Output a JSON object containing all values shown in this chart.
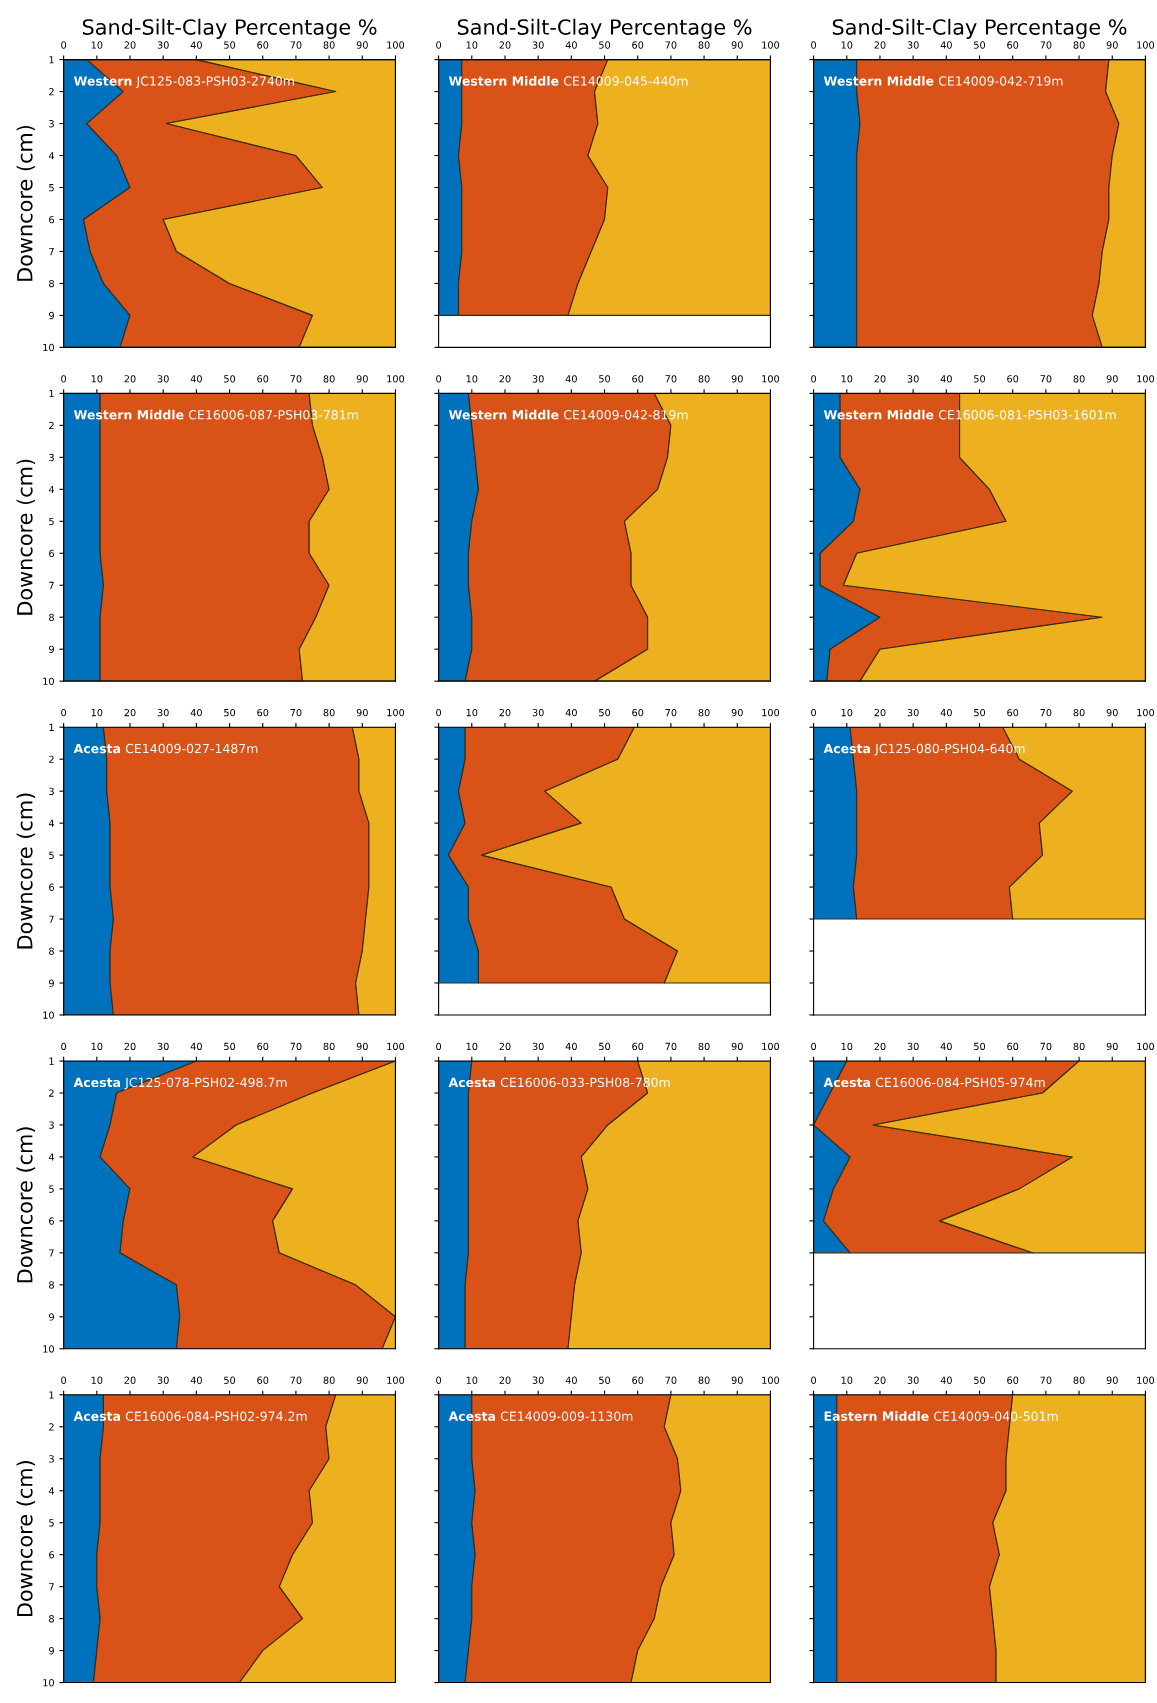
{
  "chart_data": [
    {
      "type": "area",
      "orientation": "horizontal",
      "stacked": true,
      "title": "Sand-Silt-Clay Percentage %",
      "ylabel": "Downcore (cm)",
      "x": [
        1,
        2,
        3,
        4,
        5,
        6,
        7,
        8,
        9,
        10
      ],
      "ylim": [
        10,
        1
      ],
      "yticks": [
        1,
        2,
        3,
        4,
        5,
        6,
        7,
        8,
        9,
        10
      ],
      "xlim": [
        0,
        100
      ],
      "xticks": [
        0,
        10,
        20,
        30,
        40,
        50,
        60,
        70,
        80,
        90,
        100
      ],
      "annotations": [
        "Western",
        "JC125-083-PSH03-2740m"
      ],
      "series": [
        {
          "color": "#0072bd",
          "values": [
            7,
            18,
            7,
            16,
            20,
            6,
            8,
            12,
            20,
            17
          ]
        },
        {
          "color": "#d95319",
          "values": [
            33,
            64,
            24,
            54,
            58,
            24,
            26,
            38,
            55,
            54
          ]
        },
        {
          "color": "#edb120",
          "values": [
            60,
            18,
            69,
            30,
            22,
            70,
            66,
            50,
            25,
            29
          ]
        }
      ]
    },
    {
      "type": "area",
      "orientation": "horizontal",
      "stacked": true,
      "title": "Sand-Silt-Clay Percentage %",
      "x": [
        1,
        2,
        3,
        4,
        5,
        6,
        7,
        8,
        9
      ],
      "ylim": [
        10,
        1
      ],
      "yticks": [
        1,
        2,
        3,
        4,
        5,
        6,
        7,
        8,
        9,
        10
      ],
      "tick_labels": "x",
      "xlim": [
        0,
        100
      ],
      "xticks": [
        0,
        10,
        20,
        30,
        40,
        50,
        60,
        70,
        80,
        90,
        100
      ],
      "annotations": [
        "Western Middle",
        "CE14009-045-440m"
      ],
      "series": [
        {
          "color": "#0072bd",
          "values": [
            7,
            7,
            7,
            6,
            7,
            7,
            7,
            6,
            6
          ]
        },
        {
          "color": "#d95319",
          "values": [
            44,
            40,
            41,
            39,
            44,
            43,
            39,
            36,
            33
          ]
        },
        {
          "color": "#edb120",
          "values": [
            49,
            53,
            52,
            55,
            49,
            50,
            54,
            58,
            61
          ]
        }
      ]
    },
    {
      "type": "area",
      "orientation": "horizontal",
      "stacked": true,
      "title": "Sand-Silt-Clay Percentage %",
      "x": [
        1,
        2,
        3,
        4,
        5,
        6,
        7,
        8,
        9,
        10
      ],
      "ylim": [
        10,
        1
      ],
      "yticks": [
        1,
        2,
        3,
        4,
        5,
        6,
        7,
        8,
        9,
        10
      ],
      "tick_labels": "x",
      "xlim": [
        0,
        100
      ],
      "xticks": [
        0,
        10,
        20,
        30,
        40,
        50,
        60,
        70,
        80,
        90,
        100
      ],
      "annotations": [
        "Western Middle",
        "CE14009-042-719m"
      ],
      "series": [
        {
          "color": "#0072bd",
          "values": [
            13,
            13,
            14,
            13,
            13,
            13,
            13,
            13,
            13,
            13
          ]
        },
        {
          "color": "#d95319",
          "values": [
            76,
            75,
            78,
            77,
            76,
            76,
            74,
            73,
            71,
            74
          ]
        },
        {
          "color": "#edb120",
          "values": [
            11,
            12,
            8,
            10,
            11,
            11,
            13,
            14,
            16,
            13
          ]
        }
      ]
    },
    {
      "type": "area",
      "orientation": "horizontal",
      "stacked": true,
      "ylabel": "Downcore (cm)",
      "x": [
        1,
        2,
        3,
        4,
        5,
        6,
        7,
        8,
        9,
        10
      ],
      "ylim": [
        10,
        1
      ],
      "yticks": [
        1,
        2,
        3,
        4,
        5,
        6,
        7,
        8,
        9,
        10
      ],
      "xlim": [
        0,
        100
      ],
      "xticks": [
        0,
        10,
        20,
        30,
        40,
        50,
        60,
        70,
        80,
        90,
        100
      ],
      "annotations": [
        "Western Middle",
        "CE16006-087-PSH03-781m"
      ],
      "series": [
        {
          "color": "#0072bd",
          "values": [
            11,
            11,
            11,
            11,
            11,
            11,
            12,
            11,
            11,
            11
          ]
        },
        {
          "color": "#d95319",
          "values": [
            63,
            64,
            67,
            69,
            63,
            63,
            68,
            65,
            60,
            61
          ]
        },
        {
          "color": "#edb120",
          "values": [
            26,
            25,
            22,
            20,
            26,
            26,
            20,
            24,
            29,
            28
          ]
        }
      ]
    },
    {
      "type": "area",
      "orientation": "horizontal",
      "stacked": true,
      "x": [
        1,
        2,
        3,
        4,
        5,
        6,
        7,
        8,
        9,
        10
      ],
      "ylim": [
        10,
        1
      ],
      "yticks": [
        1,
        2,
        3,
        4,
        5,
        6,
        7,
        8,
        9,
        10
      ],
      "tick_labels": "x",
      "xlim": [
        0,
        100
      ],
      "xticks": [
        0,
        10,
        20,
        30,
        40,
        50,
        60,
        70,
        80,
        90,
        100
      ],
      "annotations": [
        "Western Middle",
        "CE14009-042-819m"
      ],
      "series": [
        {
          "color": "#0072bd",
          "values": [
            9,
            10,
            11,
            12,
            10,
            9,
            9,
            10,
            10,
            8
          ]
        },
        {
          "color": "#d95319",
          "values": [
            56,
            60,
            58,
            54,
            46,
            49,
            49,
            53,
            53,
            39
          ]
        },
        {
          "color": "#edb120",
          "values": [
            35,
            30,
            31,
            34,
            44,
            42,
            42,
            37,
            37,
            53
          ]
        }
      ]
    },
    {
      "type": "area",
      "orientation": "horizontal",
      "stacked": true,
      "x": [
        1,
        2,
        3,
        4,
        5,
        6,
        7,
        8,
        9,
        10
      ],
      "ylim": [
        10,
        1
      ],
      "yticks": [
        1,
        2,
        3,
        4,
        5,
        6,
        7,
        8,
        9,
        10
      ],
      "tick_labels": "x",
      "xlim": [
        0,
        100
      ],
      "xticks": [
        0,
        10,
        20,
        30,
        40,
        50,
        60,
        70,
        80,
        90,
        100
      ],
      "annotations": [
        "Western Middle",
        "CE16006-081-PSH03-1601m"
      ],
      "series": [
        {
          "color": "#0072bd",
          "values": [
            8,
            8,
            8,
            14,
            12,
            2,
            2,
            20,
            5,
            4
          ]
        },
        {
          "color": "#d95319",
          "values": [
            36,
            36,
            36,
            39,
            46,
            11,
            7,
            67,
            15,
            10
          ]
        },
        {
          "color": "#edb120",
          "values": [
            56,
            56,
            56,
            47,
            42,
            87,
            91,
            13,
            80,
            86
          ]
        }
      ]
    },
    {
      "type": "area",
      "orientation": "horizontal",
      "stacked": true,
      "ylabel": "Downcore (cm)",
      "x": [
        1,
        2,
        3,
        4,
        5,
        6,
        7,
        8,
        9,
        10
      ],
      "ylim": [
        10,
        1
      ],
      "yticks": [
        1,
        2,
        3,
        4,
        5,
        6,
        7,
        8,
        9,
        10
      ],
      "xlim": [
        0,
        100
      ],
      "xticks": [
        0,
        10,
        20,
        30,
        40,
        50,
        60,
        70,
        80,
        90,
        100
      ],
      "annotations": [
        "Acesta",
        "CE14009-027-1487m"
      ],
      "series": [
        {
          "color": "#0072bd",
          "values": [
            12,
            13,
            13,
            14,
            14,
            14,
            15,
            14,
            14,
            15
          ]
        },
        {
          "color": "#d95319",
          "values": [
            75,
            76,
            76,
            78,
            78,
            78,
            76,
            76,
            74,
            74
          ]
        },
        {
          "color": "#edb120",
          "values": [
            13,
            11,
            11,
            8,
            8,
            8,
            9,
            10,
            12,
            11
          ]
        }
      ]
    },
    {
      "type": "area",
      "orientation": "horizontal",
      "stacked": true,
      "x": [
        1,
        2,
        3,
        4,
        5,
        6,
        7,
        8,
        9
      ],
      "ylim": [
        10,
        1
      ],
      "yticks": [
        1,
        2,
        3,
        4,
        5,
        6,
        7,
        8,
        9,
        10
      ],
      "tick_labels": "x",
      "xlim": [
        0,
        100
      ],
      "xticks": [
        0,
        10,
        20,
        30,
        40,
        50,
        60,
        70,
        80,
        90,
        100
      ],
      "series": [
        {
          "color": "#0072bd",
          "values": [
            8,
            8,
            6,
            8,
            3,
            9,
            9,
            12,
            12
          ]
        },
        {
          "color": "#d95319",
          "values": [
            51,
            46,
            26,
            35,
            10,
            43,
            47,
            60,
            56
          ]
        },
        {
          "color": "#edb120",
          "values": [
            41,
            46,
            68,
            57,
            87,
            48,
            44,
            28,
            32
          ]
        }
      ]
    },
    {
      "type": "area",
      "orientation": "horizontal",
      "stacked": true,
      "x": [
        1,
        2,
        3,
        4,
        5,
        6,
        7
      ],
      "ylim": [
        10,
        1
      ],
      "yticks": [
        1,
        2,
        3,
        4,
        5,
        6,
        7,
        8,
        9,
        10
      ],
      "tick_labels": "x",
      "xlim": [
        0,
        100
      ],
      "xticks": [
        0,
        10,
        20,
        30,
        40,
        50,
        60,
        70,
        80,
        90,
        100
      ],
      "annotations": [
        "Acesta",
        "JC125-080-PSH04-640m"
      ],
      "series": [
        {
          "color": "#0072bd",
          "values": [
            11,
            12,
            13,
            13,
            13,
            12,
            13
          ]
        },
        {
          "color": "#d95319",
          "values": [
            46,
            50,
            65,
            55,
            56,
            47,
            47
          ]
        },
        {
          "color": "#edb120",
          "values": [
            43,
            38,
            22,
            32,
            31,
            41,
            40
          ]
        }
      ]
    },
    {
      "type": "area",
      "orientation": "horizontal",
      "stacked": true,
      "ylabel": "Downcore (cm)",
      "x": [
        1,
        2,
        3,
        4,
        5,
        6,
        7,
        8,
        9,
        10
      ],
      "ylim": [
        10,
        1
      ],
      "yticks": [
        1,
        2,
        3,
        4,
        5,
        6,
        7,
        8,
        9,
        10
      ],
      "xlim": [
        0,
        100
      ],
      "xticks": [
        0,
        10,
        20,
        30,
        40,
        50,
        60,
        70,
        80,
        90,
        100
      ],
      "annotations": [
        "Acesta",
        "JC125-078-PSH02-498.7m"
      ],
      "series": [
        {
          "color": "#0072bd",
          "values": [
            40,
            16,
            14,
            11,
            20,
            18,
            17,
            34,
            35,
            34
          ]
        },
        {
          "color": "#d95319",
          "values": [
            60,
            59,
            38,
            28,
            49,
            45,
            48,
            54,
            65,
            62
          ]
        },
        {
          "color": "#edb120",
          "values": [
            0,
            25,
            48,
            61,
            31,
            37,
            35,
            12,
            0,
            4
          ]
        }
      ]
    },
    {
      "type": "area",
      "orientation": "horizontal",
      "stacked": true,
      "x": [
        1,
        2,
        3,
        4,
        5,
        6,
        7,
        8,
        9,
        10
      ],
      "ylim": [
        10,
        1
      ],
      "yticks": [
        1,
        2,
        3,
        4,
        5,
        6,
        7,
        8,
        9,
        10
      ],
      "tick_labels": "x",
      "xlim": [
        0,
        100
      ],
      "xticks": [
        0,
        10,
        20,
        30,
        40,
        50,
        60,
        70,
        80,
        90,
        100
      ],
      "annotations": [
        "Acesta",
        "CE16006-033-PSH08-780m"
      ],
      "series": [
        {
          "color": "#0072bd",
          "values": [
            10,
            9,
            9,
            9,
            9,
            9,
            9,
            8,
            8,
            8
          ]
        },
        {
          "color": "#d95319",
          "values": [
            50,
            54,
            42,
            34,
            36,
            33,
            34,
            33,
            32,
            31
          ]
        },
        {
          "color": "#edb120",
          "values": [
            40,
            37,
            49,
            57,
            55,
            58,
            57,
            59,
            60,
            61
          ]
        }
      ]
    },
    {
      "type": "area",
      "orientation": "horizontal",
      "stacked": true,
      "x": [
        1,
        2,
        3,
        4,
        5,
        6,
        7
      ],
      "ylim": [
        10,
        1
      ],
      "yticks": [
        1,
        2,
        3,
        4,
        5,
        6,
        7,
        8,
        9,
        10
      ],
      "tick_labels": "x",
      "xlim": [
        0,
        100
      ],
      "xticks": [
        0,
        10,
        20,
        30,
        40,
        50,
        60,
        70,
        80,
        90,
        100
      ],
      "annotations": [
        "Acesta",
        "CE16006-084-PSH05-974m"
      ],
      "series": [
        {
          "color": "#0072bd",
          "values": [
            10,
            5,
            0,
            11,
            6,
            3,
            11
          ]
        },
        {
          "color": "#d95319",
          "values": [
            70,
            64,
            18,
            67,
            56,
            35,
            55
          ]
        },
        {
          "color": "#edb120",
          "values": [
            20,
            31,
            82,
            22,
            38,
            62,
            34
          ]
        }
      ]
    },
    {
      "type": "area",
      "orientation": "horizontal",
      "stacked": true,
      "ylabel": "Downcore (cm)",
      "x": [
        1,
        2,
        3,
        4,
        5,
        6,
        7,
        8,
        9,
        10
      ],
      "ylim": [
        10,
        1
      ],
      "yticks": [
        1,
        2,
        3,
        4,
        5,
        6,
        7,
        8,
        9,
        10
      ],
      "xlim": [
        0,
        100
      ],
      "xticks": [
        0,
        10,
        20,
        30,
        40,
        50,
        60,
        70,
        80,
        90,
        100
      ],
      "annotations": [
        "Acesta",
        "CE16006-084-PSH02-974.2m"
      ],
      "series": [
        {
          "color": "#0072bd",
          "values": [
            12,
            12,
            11,
            11,
            11,
            10,
            10,
            11,
            10,
            9
          ]
        },
        {
          "color": "#d95319",
          "values": [
            70,
            67,
            69,
            63,
            64,
            59,
            55,
            61,
            50,
            44
          ]
        },
        {
          "color": "#edb120",
          "values": [
            18,
            21,
            20,
            26,
            25,
            31,
            35,
            28,
            40,
            47
          ]
        }
      ]
    },
    {
      "type": "area",
      "orientation": "horizontal",
      "stacked": true,
      "x": [
        1,
        2,
        3,
        4,
        5,
        6,
        7,
        8,
        9,
        10
      ],
      "ylim": [
        10,
        1
      ],
      "yticks": [
        1,
        2,
        3,
        4,
        5,
        6,
        7,
        8,
        9,
        10
      ],
      "tick_labels": "x",
      "xlim": [
        0,
        100
      ],
      "xticks": [
        0,
        10,
        20,
        30,
        40,
        50,
        60,
        70,
        80,
        90,
        100
      ],
      "annotations": [
        "Acesta",
        "CE14009-009-1130m"
      ],
      "series": [
        {
          "color": "#0072bd",
          "values": [
            10,
            10,
            10,
            11,
            10,
            11,
            10,
            10,
            9,
            8
          ]
        },
        {
          "color": "#d95319",
          "values": [
            60,
            58,
            62,
            62,
            60,
            60,
            57,
            55,
            51,
            50
          ]
        },
        {
          "color": "#edb120",
          "values": [
            30,
            32,
            28,
            27,
            30,
            29,
            33,
            35,
            40,
            42
          ]
        }
      ]
    },
    {
      "type": "area",
      "orientation": "horizontal",
      "stacked": true,
      "x": [
        1,
        2,
        3,
        4,
        5,
        6,
        7,
        8,
        9,
        10
      ],
      "ylim": [
        10,
        1
      ],
      "yticks": [
        1,
        2,
        3,
        4,
        5,
        6,
        7,
        8,
        9,
        10
      ],
      "tick_labels": "x",
      "xlim": [
        0,
        100
      ],
      "xticks": [
        0,
        10,
        20,
        30,
        40,
        50,
        60,
        70,
        80,
        90,
        100
      ],
      "annotations": [
        "Eastern Middle",
        "CE14009-040-501m"
      ],
      "series": [
        {
          "color": "#0072bd",
          "values": [
            7,
            7,
            7,
            7,
            7,
            7,
            7,
            7,
            7,
            7
          ]
        },
        {
          "color": "#d95319",
          "values": [
            53,
            52,
            51,
            51,
            47,
            49,
            46,
            47,
            48,
            48
          ]
        },
        {
          "color": "#edb120",
          "values": [
            40,
            41,
            42,
            42,
            46,
            44,
            47,
            46,
            45,
            45
          ]
        }
      ]
    }
  ]
}
